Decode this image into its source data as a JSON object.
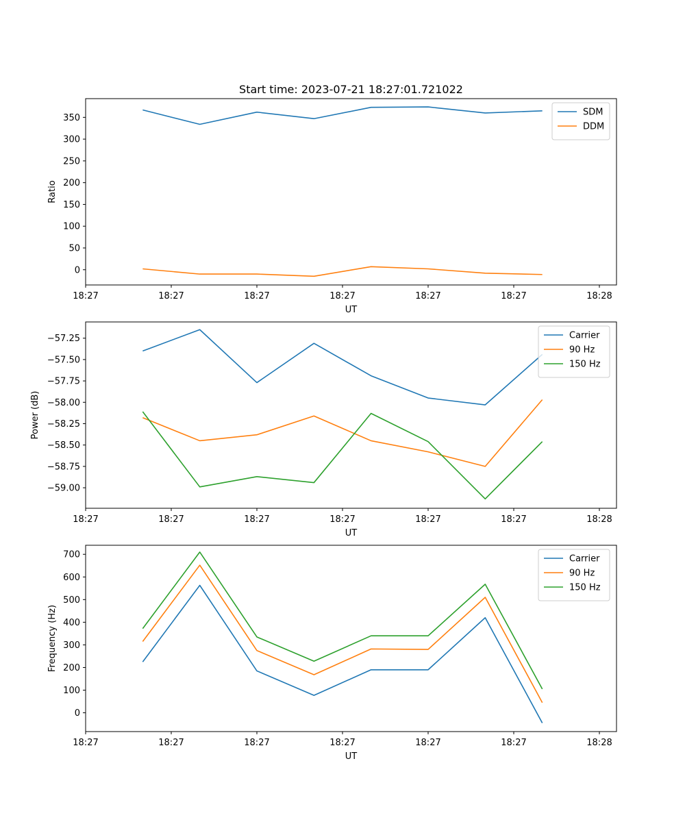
{
  "chart_data": [
    {
      "type": "line",
      "title": "Start time: 2023-07-21 18:27:01.721022",
      "xlabel": "UT",
      "ylabel": "Ratio",
      "x_tick_labels": [
        "18:27",
        "18:27",
        "18:27",
        "18:27",
        "18:27",
        "18:27",
        "18:28"
      ],
      "x": [
        1,
        2,
        3,
        4,
        5,
        6,
        7,
        8
      ],
      "xlim": [
        0,
        9.3
      ],
      "x_ticks": [
        0,
        1.5,
        3,
        4.5,
        6,
        7.5,
        9
      ],
      "ylim": [
        -35,
        393
      ],
      "y_ticks": [
        0,
        50,
        100,
        150,
        200,
        250,
        300,
        350
      ],
      "y_tick_labels": [
        "0",
        "50",
        "100",
        "150",
        "200",
        "250",
        "300",
        "350"
      ],
      "legend_position": "top-right",
      "series": [
        {
          "name": "SDM",
          "color": "#1f77b4",
          "values": [
            367,
            334,
            362,
            347,
            373,
            374,
            360,
            365
          ]
        },
        {
          "name": "DDM",
          "color": "#ff7f0e",
          "values": [
            2,
            -10,
            -10,
            -15,
            7,
            2,
            -8,
            -11
          ]
        }
      ]
    },
    {
      "type": "line",
      "title": "",
      "xlabel": "UT",
      "ylabel": "Power (dB)",
      "x_tick_labels": [
        "18:27",
        "18:27",
        "18:27",
        "18:27",
        "18:27",
        "18:27",
        "18:28"
      ],
      "x": [
        1,
        2,
        3,
        4,
        5,
        6,
        7,
        8
      ],
      "xlim": [
        0,
        9.3
      ],
      "x_ticks": [
        0,
        1.5,
        3,
        4.5,
        6,
        7.5,
        9
      ],
      "ylim": [
        -59.24,
        -57.06
      ],
      "y_ticks": [
        -59.0,
        -58.75,
        -58.5,
        -58.25,
        -58.0,
        -57.75,
        -57.5,
        -57.25
      ],
      "y_tick_labels": [
        "−59.00",
        "−58.75",
        "−58.50",
        "−58.25",
        "−58.00",
        "−57.75",
        "−57.50",
        "−57.25"
      ],
      "legend_position": "top-right",
      "series": [
        {
          "name": "Carrier",
          "color": "#1f77b4",
          "values": [
            -57.4,
            -57.15,
            -57.77,
            -57.31,
            -57.69,
            -57.95,
            -58.03,
            -57.44
          ]
        },
        {
          "name": "90 Hz",
          "color": "#ff7f0e",
          "values": [
            -58.18,
            -58.45,
            -58.38,
            -58.16,
            -58.45,
            -58.58,
            -58.75,
            -57.97
          ]
        },
        {
          "name": "150 Hz",
          "color": "#2ca02c",
          "values": [
            -58.11,
            -58.99,
            -58.87,
            -58.94,
            -58.13,
            -58.46,
            -59.13,
            -58.46
          ]
        }
      ]
    },
    {
      "type": "line",
      "title": "",
      "xlabel": "UT",
      "ylabel": "Frequency (Hz)",
      "x_tick_labels": [
        "18:27",
        "18:27",
        "18:27",
        "18:27",
        "18:27",
        "18:27",
        "18:28"
      ],
      "x": [
        1,
        2,
        3,
        4,
        5,
        6,
        7,
        8
      ],
      "xlim": [
        0,
        9.3
      ],
      "x_ticks": [
        0,
        1.5,
        3,
        4.5,
        6,
        7.5,
        9
      ],
      "ylim": [
        -83,
        740
      ],
      "y_ticks": [
        0,
        100,
        200,
        300,
        400,
        500,
        600,
        700
      ],
      "y_tick_labels": [
        "0",
        "100",
        "200",
        "300",
        "400",
        "500",
        "600",
        "700"
      ],
      "legend_position": "top-right",
      "series": [
        {
          "name": "Carrier",
          "color": "#1f77b4",
          "values": [
            225,
            563,
            185,
            77,
            190,
            190,
            420,
            -45
          ]
        },
        {
          "name": "90 Hz",
          "color": "#ff7f0e",
          "values": [
            315,
            652,
            275,
            168,
            282,
            280,
            510,
            45
          ]
        },
        {
          "name": "150 Hz",
          "color": "#2ca02c",
          "values": [
            372,
            710,
            335,
            228,
            340,
            340,
            568,
            105
          ]
        }
      ]
    }
  ]
}
